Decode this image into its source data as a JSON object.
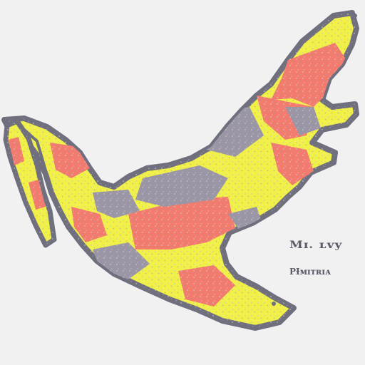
{
  "map": {
    "region": "Mexico",
    "style": "stylized choropleth with mottled fill",
    "colors": {
      "background": "#f1f1f1",
      "outline": "#6f6f7e",
      "yellow": "#f1f047",
      "coral": "#f27b6e",
      "gray": "#9a96a6",
      "speckle": "#c9c9c4"
    },
    "legend": {
      "title": "Mɪ. ʟvy",
      "subtitle": "PƗᴍɪᴛʀɪᴀ"
    }
  }
}
